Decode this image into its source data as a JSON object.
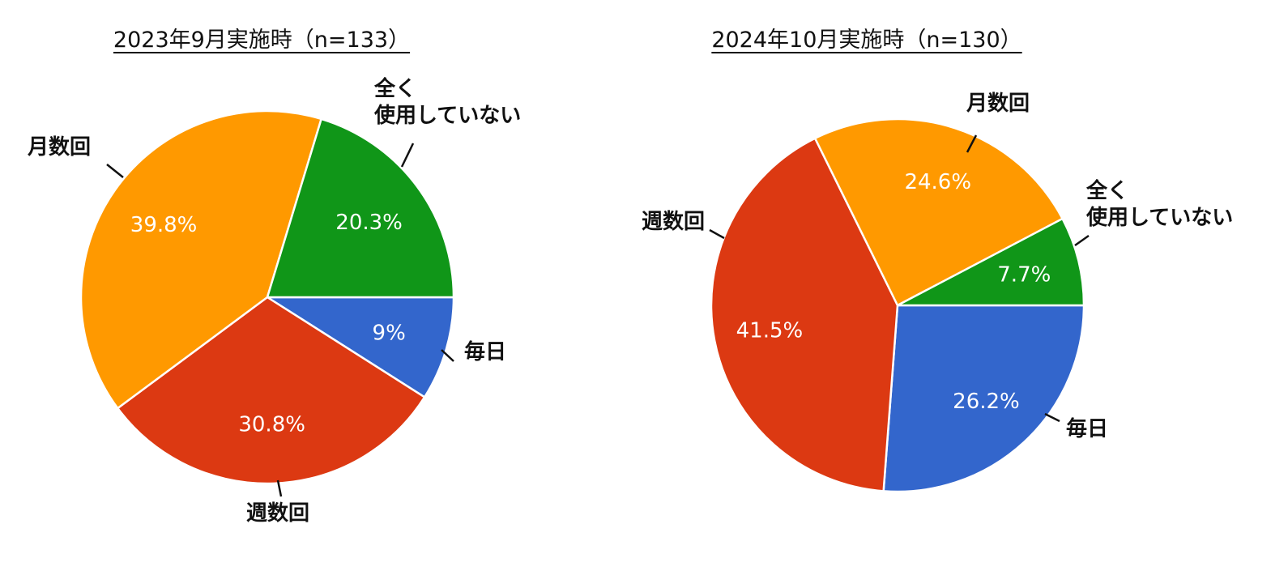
{
  "chart_data": [
    {
      "type": "pie",
      "title": "2023年9月実施時（n=133）",
      "start_angle_deg": 0,
      "slices": [
        {
          "label": "毎日",
          "value": 9.0,
          "pct_label": "9%",
          "color": "#3366cc"
        },
        {
          "label": "週数回",
          "value": 30.8,
          "pct_label": "30.8%",
          "color": "#dc3912"
        },
        {
          "label": "月数回",
          "value": 39.8,
          "pct_label": "39.8%",
          "color": "#ff9900"
        },
        {
          "label": "全く\n使用していない",
          "value": 20.3,
          "pct_label": "20.3%",
          "color": "#109618"
        }
      ],
      "legend": "none"
    },
    {
      "type": "pie",
      "title": "2024年10月実施時（n=130）",
      "start_angle_deg": 0,
      "slices": [
        {
          "label": "毎日",
          "value": 26.2,
          "pct_label": "26.2%",
          "color": "#3366cc"
        },
        {
          "label": "週数回",
          "value": 41.5,
          "pct_label": "41.5%",
          "color": "#dc3912"
        },
        {
          "label": "月数回",
          "value": 24.6,
          "pct_label": "24.6%",
          "color": "#ff9900"
        },
        {
          "label": "全く\n使用していない",
          "value": 7.7,
          "pct_label": "7.7%",
          "color": "#109618"
        }
      ],
      "legend": "none"
    }
  ]
}
